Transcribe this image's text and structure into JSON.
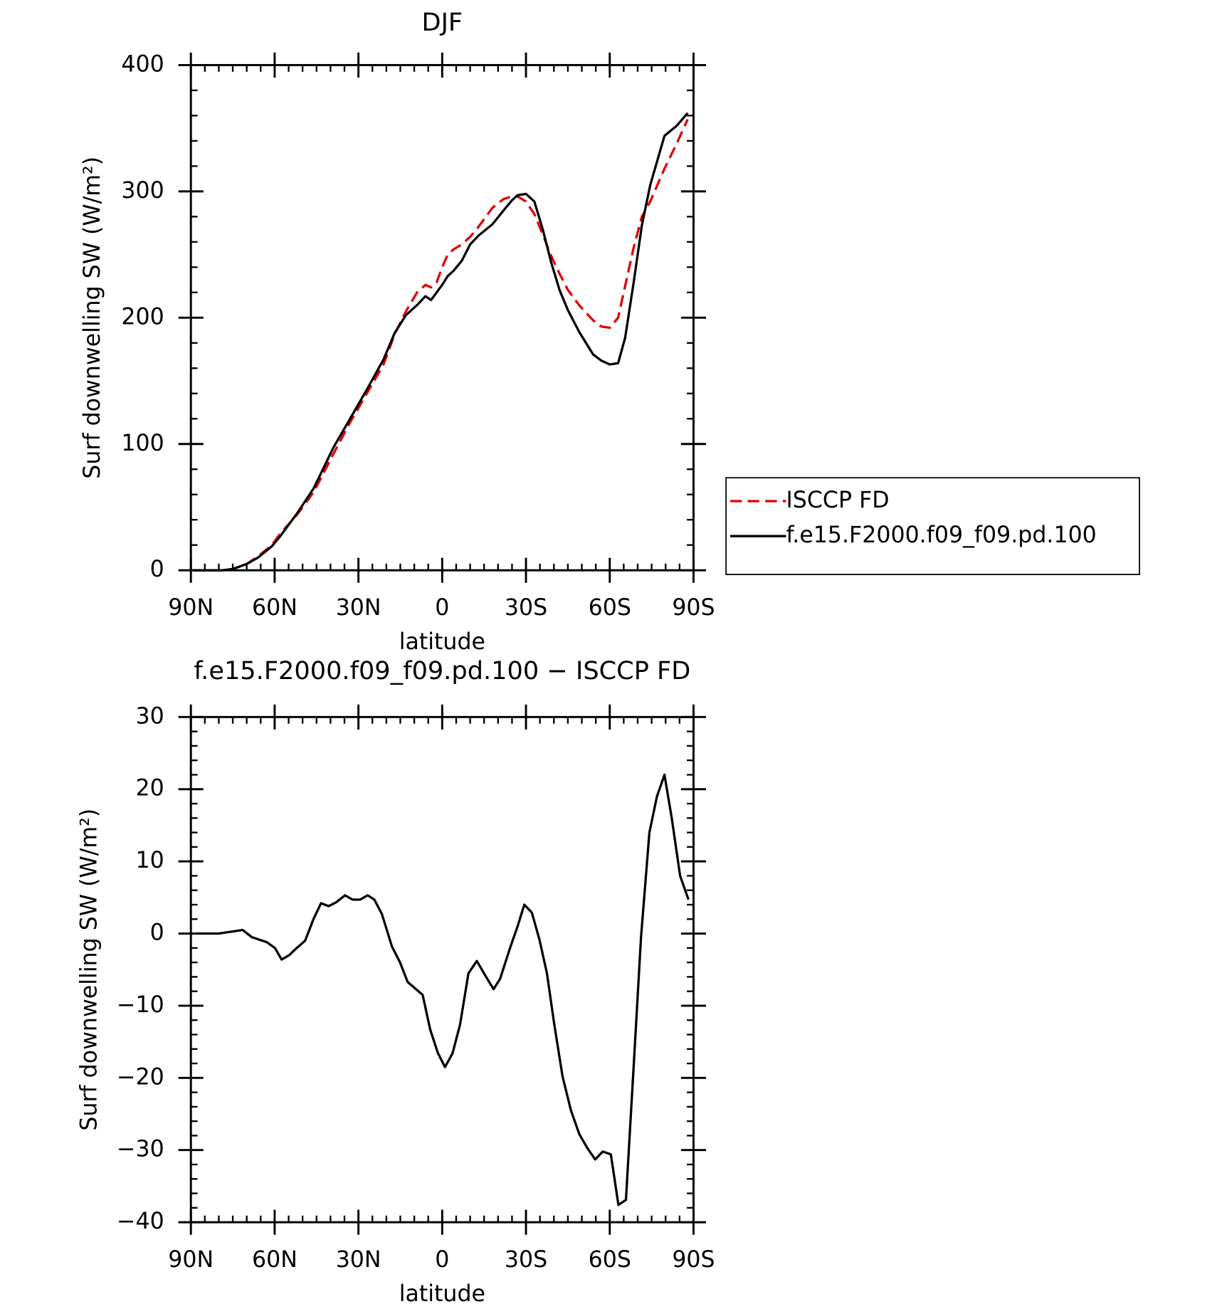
{
  "chart_data": [
    {
      "type": "line",
      "title": "DJF",
      "xlabel": "latitude",
      "ylabel": "Surf downwelling SW (W/m²)",
      "x": [
        89,
        79,
        75,
        70,
        66,
        61,
        58,
        52,
        46,
        39,
        33,
        27,
        21,
        17,
        13,
        9,
        6,
        4,
        2,
        0,
        -2,
        -4,
        -7,
        -10,
        -13,
        -18,
        -22,
        -25,
        -27,
        -30,
        -33,
        -36,
        -39,
        -42,
        -45,
        -49,
        -54,
        -57,
        -60,
        -63,
        -65.5,
        -68.5,
        -71.5,
        -74.5,
        -79.6,
        -84,
        -87.9
      ],
      "series": [
        {
          "name": "ISCCP FD",
          "color": "#e00000",
          "dash": true,
          "values": [
            0,
            0,
            1,
            5,
            11,
            20,
            29,
            44,
            62,
            92,
            117,
            140,
            163,
            187,
            205,
            220,
            226,
            224,
            228,
            240,
            250,
            254,
            258,
            264,
            272,
            287,
            294,
            296,
            296,
            292,
            282,
            266,
            249,
            235,
            222,
            210,
            198,
            193,
            192,
            200,
            225,
            255,
            280,
            292,
            318,
            338,
            357
          ]
        },
        {
          "name": "f.e15.F2000.f09_f09.pd.100",
          "color": "#000000",
          "dash": false,
          "values": [
            0,
            0,
            1,
            5,
            10,
            19,
            27,
            45,
            65,
            97,
            120,
            143,
            167,
            188,
            202,
            210,
            217,
            214,
            220,
            226,
            233,
            237,
            245,
            258,
            265,
            274,
            285,
            293,
            297,
            298,
            292,
            270,
            244,
            222,
            206,
            189,
            171,
            166,
            163,
            164,
            184,
            227,
            273,
            305,
            344,
            352,
            362
          ]
        }
      ],
      "xlim": [
        90,
        -90
      ],
      "xticks": [
        {
          "value": 90,
          "label": "90N"
        },
        {
          "value": 60,
          "label": "60N"
        },
        {
          "value": 30,
          "label": "30N"
        },
        0,
        {
          "value": -30,
          "label": "30S"
        },
        {
          "value": -60,
          "label": "60S"
        },
        {
          "value": -90,
          "label": "90S"
        }
      ],
      "ylim": [
        0,
        400
      ],
      "yticks": [
        0,
        100,
        200,
        300,
        400
      ],
      "legend": "outside-right"
    },
    {
      "type": "line",
      "title": "f.e15.F2000.f09_f09.pd.100 − ISCCP FD",
      "xlabel": "latitude",
      "ylabel": "Surf downwelling SW (W/m²)",
      "x": [
        87.9,
        80.1,
        74.8,
        71.5,
        68.2,
        64.3,
        62.8,
        59.9,
        57.5,
        54.8,
        52.1,
        49.1,
        46.1,
        43.4,
        40.7,
        38.1,
        34.8,
        32.1,
        29.4,
        26.7,
        24.3,
        21.6,
        18.0,
        15.1,
        12.4,
        7.0,
        4.3,
        1.6,
        -1.0,
        -3.7,
        -6.4,
        -9.4,
        -12.4,
        -15.4,
        -18.4,
        -20.7,
        -24.3,
        -27.0,
        -29.4,
        -32.1,
        -34.8,
        -37.5,
        -40.1,
        -43.1,
        -46.1,
        -49.1,
        -52.1,
        -54.8,
        -57.5,
        -60.4,
        -63.1,
        -65.8,
        -68.8,
        -71.2,
        -74.2,
        -76.9,
        -79.6,
        -82.2,
        -85.2,
        -88.2
      ],
      "series": [
        {
          "color": "#000000",
          "dash": false,
          "values": [
            0,
            0,
            0.3,
            0.5,
            -0.5,
            -1,
            -1.2,
            -2,
            -3.6,
            -3,
            -2,
            -1,
            2,
            4.2,
            3.8,
            4.3,
            5.3,
            4.7,
            4.7,
            5.3,
            4.7,
            2.7,
            -1.8,
            -4,
            -6.7,
            -8.5,
            -13.3,
            -16.5,
            -18.5,
            -16.6,
            -12.6,
            -5.5,
            -3.8,
            -5.8,
            -7.7,
            -6.3,
            -2,
            1,
            4,
            2.9,
            -0.8,
            -5.5,
            -12.5,
            -19.8,
            -24.5,
            -27.8,
            -29.8,
            -31.3,
            -30.2,
            -30.6,
            -37.6,
            -36.9,
            -16.8,
            -0.5,
            14,
            19,
            22,
            16,
            8,
            4.7
          ]
        }
      ],
      "xlim": [
        90,
        -90
      ],
      "xticks": [
        {
          "value": 90,
          "label": "90N"
        },
        {
          "value": 60,
          "label": "60N"
        },
        {
          "value": 30,
          "label": "30N"
        },
        0,
        {
          "value": -30,
          "label": "30S"
        },
        {
          "value": -60,
          "label": "60S"
        },
        {
          "value": -90,
          "label": "90S"
        }
      ],
      "ylim": [
        -40,
        30
      ],
      "yticks": [
        {
          "value": -40,
          "label": "−40"
        },
        {
          "value": -30,
          "label": "−30"
        },
        {
          "value": -20,
          "label": "−20"
        },
        {
          "value": -10,
          "label": "−10"
        },
        0,
        10,
        20,
        30
      ]
    }
  ]
}
